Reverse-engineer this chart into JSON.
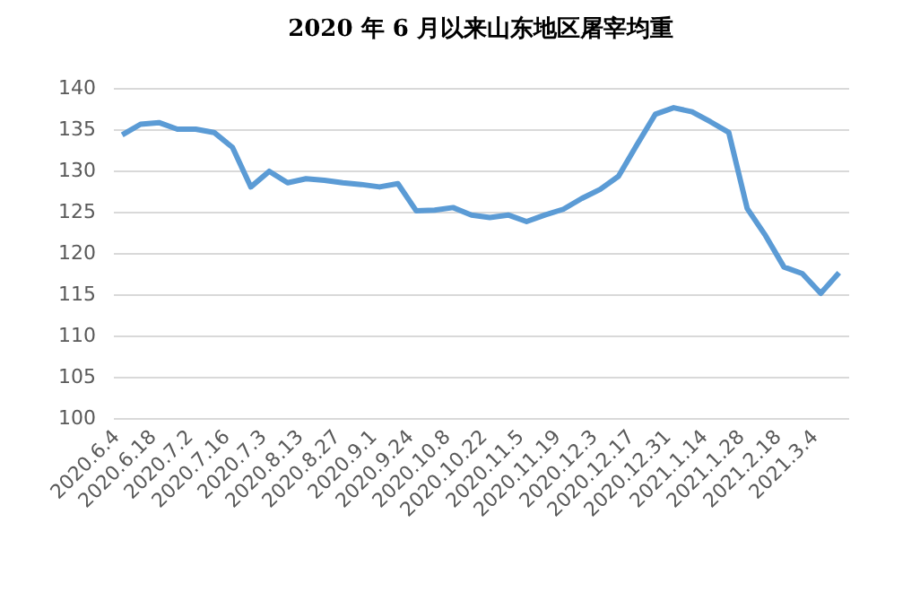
{
  "chart_data": {
    "type": "line",
    "title": "2020 年 6 月以来山东地区屠宰均重",
    "categories": [
      "2020.6.4",
      null,
      "2020.6.18",
      null,
      "2020.7.2",
      null,
      "2020.7.16",
      null,
      "2020.7.3",
      null,
      "2020.8.13",
      null,
      "2020.8.27",
      null,
      "2020.9.1",
      null,
      "2020.9.24",
      null,
      "2020.10.8",
      null,
      "2020.10.22",
      null,
      "2020.11.5",
      null,
      "2020.11.19",
      null,
      "2020.12.3",
      null,
      "2020.12.17",
      null,
      "2020.12.31",
      null,
      "2021.1.14",
      null,
      "2021.1.28",
      null,
      "2021.2.18",
      null,
      "2021.3.4",
      null
    ],
    "series": [
      {
        "color": "#5b9bd5",
        "values": [
          134.3,
          135.6,
          135.8,
          135.0,
          135.0,
          134.6,
          132.8,
          128.0,
          129.9,
          128.5,
          129.0,
          128.8,
          128.5,
          128.3,
          128.0,
          128.4,
          125.1,
          125.2,
          125.5,
          124.6,
          124.3,
          124.6,
          123.8,
          124.6,
          125.3,
          126.6,
          127.7,
          129.3,
          133.1,
          136.8,
          137.6,
          137.1,
          135.9,
          134.6,
          125.4,
          122.1,
          118.3,
          117.5,
          115.1,
          117.6
        ]
      }
    ],
    "ylim": [
      100,
      140
    ],
    "yticks": [
      100,
      105,
      110,
      115,
      120,
      125,
      130,
      135,
      140
    ],
    "grid": "y",
    "legend": false,
    "marker": "none",
    "line_style": "solid"
  }
}
